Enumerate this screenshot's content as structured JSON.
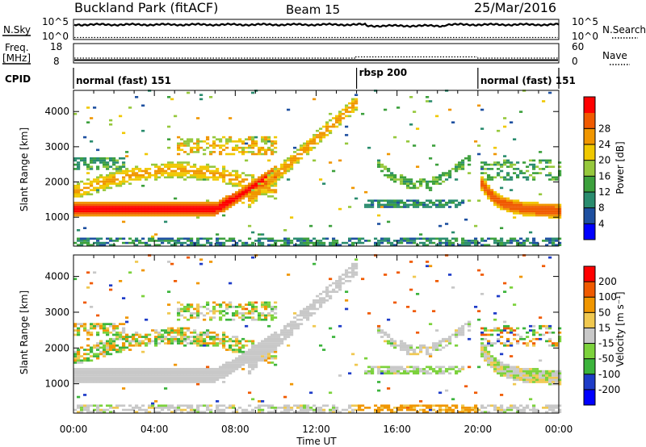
{
  "header": {
    "title": "Buckland Park (fitACF)",
    "beam": "Beam 15",
    "date": "25/Mar/2016"
  },
  "summary": {
    "nsky_label": "N.Sky",
    "nsky_ticks": [
      "10^5",
      "10^0"
    ],
    "nsearch_label": "N.Search",
    "nsearch_ticks": [
      "10^5",
      "10^0"
    ],
    "freq_label_line1": "Freq.",
    "freq_label_line2": "[MHz]",
    "freq_ticks": [
      "18",
      "8"
    ],
    "nave_label": "Nave",
    "nave_ticks": [
      "60",
      "0"
    ],
    "cpid_label": "CPID",
    "modes": [
      {
        "name": "normal (fast) 151",
        "start_hour": 0,
        "end_hour": 14
      },
      {
        "name": "rbsp 200",
        "start_hour": 14,
        "end_hour": 20
      },
      {
        "name": "normal (fast) 151",
        "start_hour": 20,
        "end_hour": 24
      }
    ]
  },
  "chart_data": [
    {
      "type": "heatmap",
      "name": "power",
      "ylabel": "Slant Range [km]",
      "yticks": [
        1000,
        2000,
        3000,
        4000
      ],
      "ylim": [
        180,
        4600
      ],
      "xlim": [
        0,
        24
      ],
      "colorbar_label": "Power [dB]",
      "colorbar_ticks": [
        "4",
        "8",
        "12",
        "16",
        "20",
        "24",
        "28"
      ],
      "colorbar_range": [
        0,
        32
      ],
      "colors": [
        "#0000ff",
        "#1e50a0",
        "#2a8c6e",
        "#3ca03c",
        "#96c83c",
        "#f0c800",
        "#f09600",
        "#f05a00",
        "#ff0000"
      ]
    },
    {
      "type": "heatmap",
      "name": "velocity",
      "ylabel": "Slant Range [km]",
      "yticks": [
        1000,
        2000,
        3000,
        4000
      ],
      "ylim": [
        180,
        4600
      ],
      "xlim": [
        0,
        24
      ],
      "xlabel": "Time UT",
      "xticks": [
        "00:00",
        "04:00",
        "08:00",
        "12:00",
        "16:00",
        "20:00",
        "00:00"
      ],
      "colorbar_label": "Velocity [m s⁻¹]",
      "colorbar_ticks": [
        "200",
        "100",
        "50",
        "15",
        "-15",
        "-50",
        "-100",
        "-200"
      ],
      "colors": [
        "#0000ff",
        "#1e3cc8",
        "#3cb43c",
        "#7cd23c",
        "#c8c8c8",
        "#f0c850",
        "#f09600",
        "#f05a00",
        "#ff0000"
      ]
    }
  ]
}
